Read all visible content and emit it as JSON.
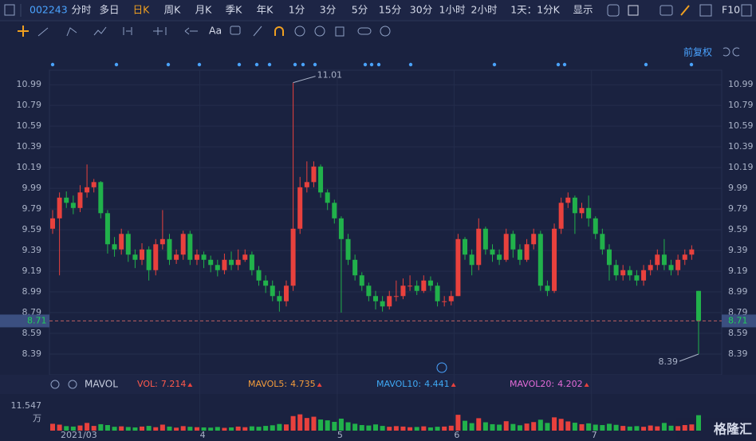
{
  "toolbar": {
    "code": "002243",
    "periods": [
      "分时",
      "多日",
      "日K",
      "周K",
      "月K",
      "季K",
      "年K",
      "1分",
      "3分",
      "5分",
      "15分",
      "30分",
      "1小时",
      "2小时",
      "1天：1分K",
      "显示"
    ],
    "active": 2,
    "f10": "F10"
  },
  "drawing_tools": {
    "text_tool": "Aa"
  },
  "adjust": "前复权",
  "logo": "格隆汇",
  "chart_data": [
    {
      "type": "candlestick",
      "categories": [
        "2021/03",
        null,
        null,
        null,
        null,
        null,
        null,
        null,
        null,
        null,
        null,
        null,
        null,
        null,
        null,
        null,
        null,
        null,
        null,
        null,
        null,
        null,
        "4",
        null,
        null,
        null,
        null,
        null,
        null,
        null,
        null,
        null,
        null,
        null,
        null,
        null,
        null,
        null,
        null,
        null,
        null,
        null,
        "5",
        null,
        null,
        null,
        null,
        null,
        null,
        null,
        null,
        null,
        null,
        null,
        null,
        null,
        null,
        null,
        null,
        "6",
        null,
        null,
        null,
        null,
        null,
        null,
        null,
        null,
        null,
        null,
        null,
        null,
        null,
        null,
        null,
        null,
        null,
        null,
        null,
        "7",
        null,
        null,
        null,
        null,
        null,
        null,
        null,
        null,
        null,
        null,
        null,
        null,
        null,
        null,
        null
      ],
      "open": [
        9.6,
        9.7,
        9.9,
        9.85,
        9.8,
        9.95,
        10.0,
        10.05,
        9.75,
        9.45,
        9.4,
        9.55,
        9.35,
        9.3,
        9.4,
        9.2,
        9.45,
        9.5,
        9.3,
        9.35,
        9.55,
        9.3,
        9.35,
        9.3,
        9.25,
        9.2,
        9.3,
        9.25,
        9.3,
        9.35,
        9.2,
        9.1,
        9.05,
        8.95,
        8.9,
        9.05,
        9.6,
        10.0,
        10.05,
        10.2,
        9.95,
        9.85,
        9.7,
        9.5,
        9.3,
        9.15,
        9.05,
        8.95,
        8.9,
        8.85,
        8.95,
        8.95,
        9.05,
        9.05,
        9.0,
        9.1,
        9.05,
        8.9,
        8.9,
        8.95,
        9.5,
        9.35,
        9.25,
        9.6,
        9.4,
        9.35,
        9.3,
        9.55,
        9.4,
        9.3,
        9.45,
        9.55,
        9.05,
        9.0,
        9.6,
        9.85,
        9.9,
        9.75,
        9.8,
        9.7,
        9.55,
        9.4,
        9.25,
        9.15,
        9.2,
        9.15,
        9.1,
        9.2,
        9.25,
        9.35,
        9.25,
        9.2,
        9.3,
        9.35,
        9.0
      ],
      "high": [
        9.78,
        9.95,
        9.96,
        9.92,
        10.02,
        10.22,
        10.08,
        10.06,
        9.78,
        9.52,
        9.6,
        9.58,
        9.4,
        9.46,
        9.43,
        9.5,
        9.78,
        9.55,
        9.4,
        9.58,
        9.58,
        9.4,
        9.38,
        9.34,
        9.3,
        9.36,
        9.38,
        9.4,
        9.4,
        9.38,
        9.24,
        9.15,
        9.1,
        9.0,
        9.1,
        11.01,
        10.1,
        10.25,
        10.25,
        10.22,
        9.98,
        9.88,
        9.72,
        9.55,
        9.35,
        9.18,
        9.08,
        9.0,
        8.95,
        9.0,
        9.1,
        9.12,
        9.15,
        9.1,
        9.15,
        9.14,
        9.08,
        8.95,
        9.0,
        9.55,
        9.52,
        9.4,
        9.7,
        9.62,
        9.45,
        9.4,
        9.6,
        9.58,
        9.45,
        9.5,
        9.6,
        9.58,
        9.1,
        9.65,
        9.9,
        9.95,
        9.92,
        9.85,
        9.92,
        9.72,
        9.6,
        9.45,
        9.3,
        9.25,
        9.24,
        9.2,
        9.25,
        9.3,
        9.4,
        9.5,
        9.3,
        9.35,
        9.4,
        9.44,
        9.0
      ],
      "low": [
        9.55,
        9.15,
        9.8,
        9.74,
        9.76,
        9.9,
        9.95,
        9.7,
        9.36,
        9.33,
        9.35,
        9.28,
        9.22,
        9.25,
        9.1,
        9.15,
        9.4,
        9.25,
        9.26,
        9.3,
        9.25,
        9.25,
        9.22,
        9.18,
        9.14,
        9.16,
        9.2,
        9.2,
        9.28,
        9.15,
        9.05,
        8.98,
        8.9,
        8.8,
        8.85,
        9.0,
        9.55,
        9.95,
        10.0,
        9.9,
        9.78,
        9.65,
        8.79,
        9.25,
        9.1,
        9.0,
        8.9,
        8.82,
        8.8,
        8.82,
        8.9,
        8.92,
        9.0,
        8.96,
        8.98,
        9.0,
        8.85,
        8.85,
        8.86,
        8.95,
        9.3,
        9.15,
        9.2,
        9.35,
        9.28,
        9.25,
        9.28,
        9.32,
        9.25,
        9.28,
        9.4,
        9.0,
        8.95,
        8.98,
        9.55,
        9.8,
        9.55,
        9.7,
        9.62,
        9.5,
        9.35,
        9.1,
        9.1,
        9.1,
        9.1,
        9.05,
        9.05,
        9.15,
        9.2,
        9.2,
        9.15,
        9.15,
        9.25,
        9.3,
        8.39
      ],
      "close": [
        9.7,
        9.9,
        9.85,
        9.8,
        9.95,
        10.0,
        10.05,
        9.75,
        9.45,
        9.4,
        9.55,
        9.35,
        9.3,
        9.4,
        9.2,
        9.45,
        9.5,
        9.3,
        9.35,
        9.55,
        9.3,
        9.35,
        9.3,
        9.25,
        9.2,
        9.3,
        9.25,
        9.3,
        9.35,
        9.2,
        9.1,
        9.05,
        8.95,
        8.9,
        9.05,
        9.6,
        10.0,
        10.05,
        10.2,
        9.95,
        9.85,
        9.7,
        9.5,
        9.3,
        9.15,
        9.05,
        8.95,
        8.9,
        8.85,
        8.95,
        8.95,
        9.05,
        9.05,
        9.0,
        9.1,
        9.05,
        8.9,
        8.9,
        8.95,
        9.5,
        9.35,
        9.25,
        9.6,
        9.4,
        9.35,
        9.3,
        9.55,
        9.4,
        9.3,
        9.45,
        9.55,
        9.05,
        9.0,
        9.6,
        9.85,
        9.9,
        9.75,
        9.8,
        9.7,
        9.55,
        9.4,
        9.25,
        9.15,
        9.2,
        9.15,
        9.1,
        9.2,
        9.25,
        9.35,
        9.25,
        9.2,
        9.3,
        9.35,
        9.4,
        8.71
      ],
      "ylim": [
        8.19,
        11.13
      ],
      "yticks": [
        8.39,
        8.59,
        8.79,
        8.99,
        9.19,
        9.39,
        9.59,
        9.79,
        9.99,
        10.19,
        10.39,
        10.59,
        10.79,
        10.99
      ],
      "up_color": "#e8413d",
      "down_color": "#21b14b",
      "grid": true
    },
    {
      "type": "bar",
      "title": "MAVOL",
      "indicators": [
        {
          "name": "VOL:",
          "value": 7.214,
          "color": "#ff5a4d"
        },
        {
          "name": "MAVOL5:",
          "value": 4.735,
          "color": "#f39c3c"
        },
        {
          "name": "MAVOL10:",
          "value": 4.441,
          "color": "#3fa9f5"
        },
        {
          "name": "MAVOL20:",
          "value": 4.202,
          "color": "#e36bd8"
        }
      ],
      "values": [
        3.2,
        2.8,
        2.1,
        1.9,
        2.4,
        3.6,
        2.2,
        3.0,
        2.6,
        1.8,
        2.0,
        1.7,
        1.5,
        1.9,
        2.2,
        1.6,
        2.8,
        1.9,
        1.4,
        2.1,
        1.8,
        1.6,
        1.5,
        1.4,
        1.7,
        1.3,
        1.5,
        1.9,
        1.6,
        2.0,
        1.8,
        2.2,
        2.5,
        3.1,
        2.9,
        6.8,
        7.6,
        5.9,
        6.5,
        5.2,
        4.8,
        4.1,
        5.6,
        3.9,
        3.2,
        2.6,
        2.4,
        2.9,
        2.2,
        1.8,
        2.1,
        1.9,
        1.6,
        1.7,
        2.0,
        1.5,
        1.8,
        1.9,
        2.3,
        7.4,
        4.6,
        3.5,
        5.8,
        3.9,
        3.0,
        2.8,
        4.4,
        3.1,
        2.5,
        3.3,
        4.0,
        5.1,
        3.6,
        6.2,
        5.5,
        4.3,
        3.7,
        3.0,
        3.4,
        2.8,
        2.6,
        3.2,
        2.7,
        2.2,
        1.9,
        2.1,
        1.8,
        2.4,
        2.0,
        3.6,
        2.3,
        2.1,
        2.6,
        2.9,
        7.214
      ],
      "ylim": [
        0,
        11.547
      ],
      "yticks": [
        11.547
      ],
      "y_unit": "万"
    }
  ]
}
